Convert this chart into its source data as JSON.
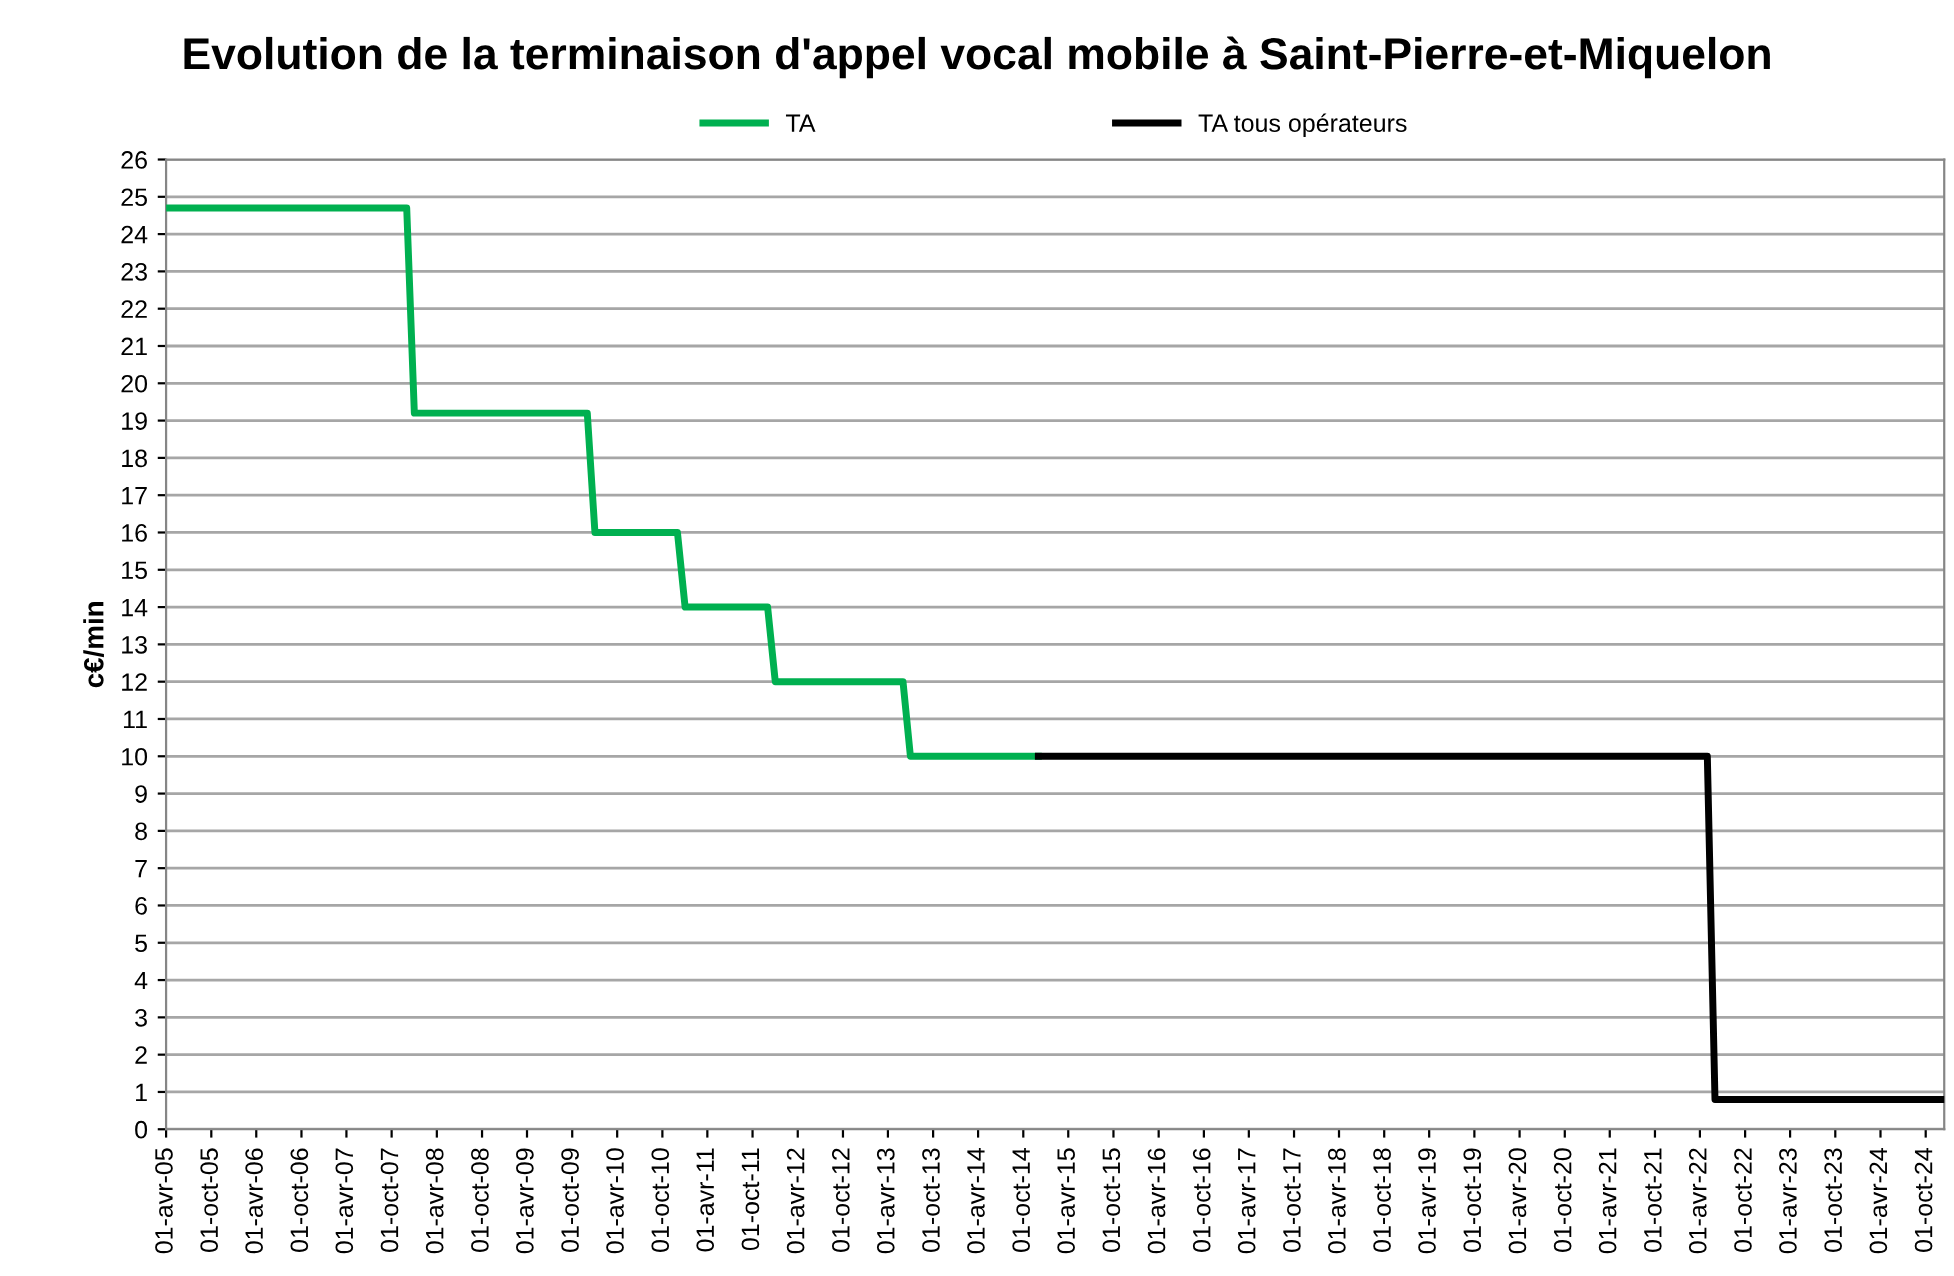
{
  "chart_data": {
    "type": "line",
    "title": "Evolution de la terminaison d'appel vocal mobile à Saint-Pierre-et-Miquelon",
    "ylabel": "c€/min",
    "series": [
      {
        "name": "TA",
        "color": "#00b050",
        "x": [
          "2005-04-01",
          "2007-12-01",
          "2008-01-01",
          "2009-12-01",
          "2010-01-01",
          "2010-12-01",
          "2011-01-01",
          "2011-12-01",
          "2012-01-01",
          "2013-06-01",
          "2013-07-01",
          "2014-12-01"
        ],
        "values": [
          24.7,
          24.7,
          19.2,
          19.2,
          16,
          16,
          14,
          14,
          12,
          12,
          10,
          10
        ]
      },
      {
        "name": "TA tous opérateurs",
        "color": "#000000",
        "x": [
          "2014-12-01",
          "2022-05-01",
          "2022-06-01",
          "2024-12-15"
        ],
        "values": [
          10,
          10,
          0.8,
          0.8
        ]
      }
    ],
    "xlim": [
      "2005-04-01",
      "2024-12-15"
    ],
    "xticks": [
      {
        "value": "2005-04-01",
        "label": "01-avr-05"
      },
      {
        "value": "2005-10-01",
        "label": "01-oct-05"
      },
      {
        "value": "2006-04-01",
        "label": "01-avr-06"
      },
      {
        "value": "2006-10-01",
        "label": "01-oct-06"
      },
      {
        "value": "2007-04-01",
        "label": "01-avr-07"
      },
      {
        "value": "2007-10-01",
        "label": "01-oct-07"
      },
      {
        "value": "2008-04-01",
        "label": "01-avr-08"
      },
      {
        "value": "2008-10-01",
        "label": "01-oct-08"
      },
      {
        "value": "2009-04-01",
        "label": "01-avr-09"
      },
      {
        "value": "2009-10-01",
        "label": "01-oct-09"
      },
      {
        "value": "2010-04-01",
        "label": "01-avr-10"
      },
      {
        "value": "2010-10-01",
        "label": "01-oct-10"
      },
      {
        "value": "2011-04-01",
        "label": "01-avr-11"
      },
      {
        "value": "2011-10-01",
        "label": "01-oct-11"
      },
      {
        "value": "2012-04-01",
        "label": "01-avr-12"
      },
      {
        "value": "2012-10-01",
        "label": "01-oct-12"
      },
      {
        "value": "2013-04-01",
        "label": "01-avr-13"
      },
      {
        "value": "2013-10-01",
        "label": "01-oct-13"
      },
      {
        "value": "2014-04-01",
        "label": "01-avr-14"
      },
      {
        "value": "2014-10-01",
        "label": "01-oct-14"
      },
      {
        "value": "2015-04-01",
        "label": "01-avr-15"
      },
      {
        "value": "2015-10-01",
        "label": "01-oct-15"
      },
      {
        "value": "2016-04-01",
        "label": "01-avr-16"
      },
      {
        "value": "2016-10-01",
        "label": "01-oct-16"
      },
      {
        "value": "2017-04-01",
        "label": "01-avr-17"
      },
      {
        "value": "2017-10-01",
        "label": "01-oct-17"
      },
      {
        "value": "2018-04-01",
        "label": "01-avr-18"
      },
      {
        "value": "2018-10-01",
        "label": "01-oct-18"
      },
      {
        "value": "2019-04-01",
        "label": "01-avr-19"
      },
      {
        "value": "2019-10-01",
        "label": "01-oct-19"
      },
      {
        "value": "2020-04-01",
        "label": "01-avr-20"
      },
      {
        "value": "2020-10-01",
        "label": "01-oct-20"
      },
      {
        "value": "2021-04-01",
        "label": "01-avr-21"
      },
      {
        "value": "2021-10-01",
        "label": "01-oct-21"
      },
      {
        "value": "2022-04-01",
        "label": "01-avr-22"
      },
      {
        "value": "2022-10-01",
        "label": "01-oct-22"
      },
      {
        "value": "2023-04-01",
        "label": "01-avr-23"
      },
      {
        "value": "2023-10-01",
        "label": "01-oct-23"
      },
      {
        "value": "2024-04-01",
        "label": "01-avr-24"
      },
      {
        "value": "2024-10-01",
        "label": "01-oct-24"
      }
    ],
    "ylim": [
      0,
      26
    ],
    "yticks": [
      0,
      1,
      2,
      3,
      4,
      5,
      6,
      7,
      8,
      9,
      10,
      11,
      12,
      13,
      14,
      15,
      16,
      17,
      18,
      19,
      20,
      21,
      22,
      23,
      24,
      25,
      26
    ],
    "grid": "y",
    "legend": "top",
    "marker": "none",
    "line_style": "solid"
  }
}
